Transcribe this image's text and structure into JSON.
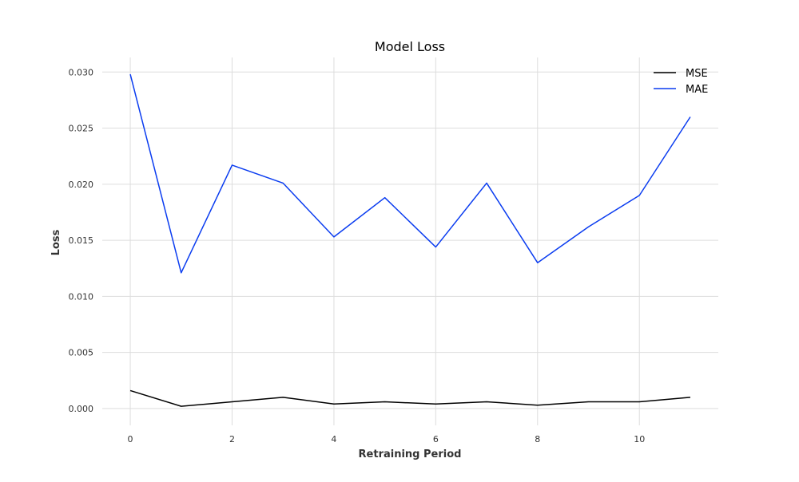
{
  "chart_data": {
    "type": "line",
    "title": "Model Loss",
    "xlabel": "Retraining Period",
    "ylabel": "Loss",
    "x": [
      0,
      1,
      2,
      3,
      4,
      5,
      6,
      7,
      8,
      9,
      10,
      11
    ],
    "xlim": [
      -0.55,
      11.55
    ],
    "ylim": [
      -0.0015,
      0.0313
    ],
    "xticks": [
      0,
      2,
      4,
      6,
      8,
      10
    ],
    "yticks": [
      0.0,
      0.005,
      0.01,
      0.015,
      0.02,
      0.025,
      0.03
    ],
    "ytick_labels": [
      "0.000",
      "0.005",
      "0.010",
      "0.015",
      "0.020",
      "0.025",
      "0.030"
    ],
    "grid": true,
    "legend_position": "top-right",
    "series": [
      {
        "name": "MSE",
        "color": "#000000",
        "values": [
          0.0016,
          0.0002,
          0.0006,
          0.001,
          0.0004,
          0.0006,
          0.0004,
          0.0006,
          0.0003,
          0.0006,
          0.0006,
          0.001
        ]
      },
      {
        "name": "MAE",
        "color": "#0a3cf0",
        "values": [
          0.0298,
          0.0121,
          0.0217,
          0.0201,
          0.0153,
          0.0188,
          0.0144,
          0.0201,
          0.013,
          0.0162,
          0.019,
          0.026
        ]
      }
    ]
  }
}
